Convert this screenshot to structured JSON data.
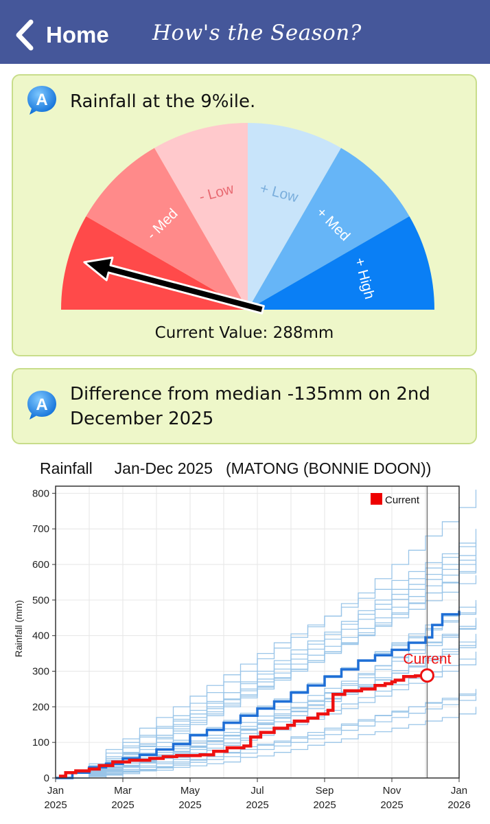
{
  "navbar": {
    "back_label": "Home",
    "title": "How's the Season?"
  },
  "status_card": {
    "badge_letter": "A",
    "heading": "Rainfall at the 9%ile.",
    "gauge_segments": [
      {
        "label": "",
        "color": "#ff4a4a"
      },
      {
        "label": "- Med",
        "color": "#ff8a8a"
      },
      {
        "label": "- Low",
        "color": "#ffc9cc"
      },
      {
        "label": "+ Low",
        "color": "#c8e4fa"
      },
      {
        "label": "+ Med",
        "color": "#66b5f7"
      },
      {
        "label": "+ High",
        "color": "#0a7ff5"
      }
    ],
    "gauge_percentile": 9,
    "current_value": "Current Value: 288mm"
  },
  "median_card": {
    "badge_letter": "A",
    "text_line1": "Difference from median -135mm on 2nd",
    "text_line2": "December 2025"
  },
  "chart_title": "Rainfall     Jan-Dec 2025   (MATONG (BONNIE DOON))",
  "chart_data": {
    "type": "line",
    "ylabel": "Rainfall (mm)",
    "ylim": [
      0,
      820
    ],
    "yticks": [
      0,
      100,
      200,
      300,
      400,
      500,
      600,
      700,
      800
    ],
    "xticks": [
      {
        "month": 0,
        "line1": "Jan",
        "line2": "2025"
      },
      {
        "month": 2,
        "line1": "Mar",
        "line2": "2025"
      },
      {
        "month": 4,
        "line1": "May",
        "line2": "2025"
      },
      {
        "month": 6,
        "line1": "Jul",
        "line2": "2025"
      },
      {
        "month": 8,
        "line1": "Sep",
        "line2": "2025"
      },
      {
        "month": 10,
        "line1": "Nov",
        "line2": "2025"
      },
      {
        "month": 12,
        "line1": "Jan",
        "line2": "2026"
      }
    ],
    "legend": {
      "label": "Current",
      "color": "#ee0000",
      "position": "top-right"
    },
    "current_annotation": "Current",
    "current_marker": {
      "month": 11.05,
      "value": 288
    },
    "current_color": "#ee1111",
    "median_color": "#1f6fd6",
    "history_color": "#8fbfe6",
    "series": [
      {
        "name": "Current",
        "points": [
          [
            0.1,
            5
          ],
          [
            0.3,
            15
          ],
          [
            0.6,
            20
          ],
          [
            1.0,
            25
          ],
          [
            1.3,
            35
          ],
          [
            1.7,
            45
          ],
          [
            2.2,
            50
          ],
          [
            2.8,
            55
          ],
          [
            3.2,
            60
          ],
          [
            3.6,
            63
          ],
          [
            4.3,
            65
          ],
          [
            4.6,
            65
          ],
          [
            4.7,
            75
          ],
          [
            5.1,
            85
          ],
          [
            5.6,
            90
          ],
          [
            5.8,
            115
          ],
          [
            6.1,
            128
          ],
          [
            6.5,
            140
          ],
          [
            6.9,
            148
          ],
          [
            7.1,
            160
          ],
          [
            7.5,
            168
          ],
          [
            7.8,
            180
          ],
          [
            8.1,
            190
          ],
          [
            8.25,
            235
          ],
          [
            8.6,
            245
          ],
          [
            9.1,
            250
          ],
          [
            9.5,
            260
          ],
          [
            9.8,
            265
          ],
          [
            10.0,
            270
          ],
          [
            10.1,
            275
          ],
          [
            10.35,
            285
          ],
          [
            10.7,
            287
          ],
          [
            11.05,
            288
          ]
        ]
      },
      {
        "points": [
          [
            0,
            0
          ],
          [
            0.5,
            15
          ],
          [
            1,
            30
          ],
          [
            1.5,
            40
          ],
          [
            2,
            55
          ],
          [
            2.5,
            65
          ],
          [
            3,
            80
          ],
          [
            3.5,
            95
          ],
          [
            4,
            120
          ],
          [
            4.5,
            135
          ],
          [
            5,
            155
          ],
          [
            5.5,
            175
          ],
          [
            6,
            195
          ],
          [
            6.5,
            215
          ],
          [
            7,
            240
          ],
          [
            7.5,
            260
          ],
          [
            8,
            285
          ],
          [
            8.5,
            305
          ],
          [
            9,
            330
          ],
          [
            9.5,
            345
          ],
          [
            10,
            360
          ],
          [
            10.5,
            380
          ],
          [
            11,
            395
          ],
          [
            11.2,
            430
          ],
          [
            11.5,
            460
          ],
          [
            12,
            470
          ]
        ]
      }
    ],
    "history": [
      [
        0,
        0,
        12,
        0,
        18,
        20,
        22,
        30,
        34,
        40,
        45,
        58,
        62,
        72,
        80,
        92,
        100,
        110,
        122,
        130,
        140,
        150,
        160,
        170,
        180,
        200
      ],
      [
        0,
        0,
        4,
        8,
        12,
        20,
        30,
        45,
        52,
        60,
        72,
        88,
        95,
        100,
        112,
        120,
        135,
        148,
        160,
        175,
        185,
        200,
        210,
        220,
        232,
        240
      ],
      [
        0,
        0,
        25,
        45,
        70,
        95,
        120,
        150,
        180,
        210,
        240,
        270,
        300,
        330,
        360,
        385,
        410,
        440,
        470,
        500,
        530,
        560,
        590,
        620,
        650,
        670
      ],
      [
        0,
        0,
        30,
        55,
        85,
        115,
        145,
        175,
        210,
        240,
        270,
        300,
        335,
        365,
        395,
        425,
        455,
        490,
        520,
        560,
        600,
        640,
        680,
        720,
        760,
        810
      ],
      [
        0,
        0,
        10,
        18,
        30,
        42,
        55,
        68,
        80,
        95,
        110,
        125,
        140,
        158,
        175,
        195,
        215,
        235,
        255,
        275,
        295,
        315,
        335,
        355,
        372,
        390
      ],
      [
        0,
        0,
        15,
        25,
        35,
        48,
        62,
        75,
        90,
        105,
        120,
        138,
        155,
        175,
        195,
        215,
        240,
        265,
        290,
        315,
        340,
        360,
        380,
        400,
        420,
        440
      ],
      [
        0,
        0,
        20,
        40,
        60,
        80,
        100,
        125,
        150,
        175,
        200,
        225,
        250,
        275,
        300,
        325,
        350,
        375,
        400,
        430,
        460,
        490,
        520,
        550,
        580,
        610
      ],
      [
        0,
        0,
        5,
        10,
        20,
        30,
        40,
        52,
        64,
        78,
        92,
        106,
        120,
        135,
        150,
        165,
        180,
        195,
        212,
        230,
        248,
        266,
        284,
        300,
        318,
        335
      ],
      [
        0,
        0,
        35,
        70,
        100,
        120,
        140,
        160,
        180,
        200,
        220,
        245,
        270,
        295,
        320,
        345,
        370,
        395,
        420,
        450,
        480,
        510,
        540,
        570,
        600,
        620
      ],
      [
        0,
        0,
        12,
        24,
        36,
        50,
        65,
        82,
        98,
        112,
        128,
        145,
        162,
        180,
        198,
        218,
        238,
        260,
        282,
        305,
        328,
        350,
        372,
        395,
        418,
        450
      ],
      [
        0,
        0,
        18,
        32,
        48,
        65,
        82,
        100,
        118,
        136,
        155,
        175,
        195,
        215,
        238,
        260,
        282,
        305,
        330,
        355,
        380,
        405,
        430,
        455,
        480,
        500
      ],
      [
        0,
        0,
        8,
        15,
        24,
        34,
        45,
        58,
        70,
        84,
        98,
        112,
        126,
        140,
        156,
        172,
        190,
        208,
        226,
        244,
        262,
        280,
        298,
        316,
        334,
        355
      ],
      [
        0,
        0,
        40,
        80,
        110,
        140,
        170,
        200,
        230,
        260,
        290,
        320,
        350,
        380,
        405,
        430,
        455,
        480,
        505,
        530,
        555,
        580,
        605,
        630,
        660,
        700
      ],
      [
        0,
        0,
        22,
        44,
        66,
        88,
        110,
        132,
        156,
        180,
        205,
        230,
        255,
        280,
        305,
        330,
        355,
        380,
        408,
        436,
        464,
        492,
        520,
        548,
        576,
        600
      ],
      [
        0,
        0,
        6,
        12,
        18,
        24,
        32,
        40,
        50,
        60,
        70,
        80,
        92,
        104,
        116,
        128,
        140,
        152,
        164,
        176,
        188,
        200,
        212,
        224,
        236,
        250
      ],
      [
        0,
        0,
        28,
        50,
        72,
        96,
        120,
        145,
        170,
        195,
        222,
        250,
        278,
        306,
        334,
        362,
        390,
        418,
        446,
        474,
        502,
        530,
        558,
        586,
        612,
        640
      ],
      [
        0,
        0,
        14,
        28,
        42,
        56,
        72,
        88,
        104,
        120,
        138,
        156,
        174,
        192,
        212,
        232,
        252,
        272,
        294,
        316,
        338,
        360,
        382,
        404,
        426,
        445
      ],
      [
        0,
        0,
        10,
        20,
        32,
        44,
        58,
        72,
        86,
        102,
        118,
        134,
        150,
        168,
        186,
        204,
        222,
        240,
        258,
        276,
        294,
        312,
        330,
        348,
        366,
        385
      ],
      [
        0,
        0,
        30,
        60,
        90,
        115,
        140,
        165,
        190,
        215,
        240,
        265,
        292,
        320,
        348,
        376,
        404,
        432,
        460,
        488,
        516,
        544,
        572,
        600,
        625,
        660
      ],
      [
        0,
        0,
        16,
        30,
        46,
        62,
        80,
        98,
        118,
        138,
        158,
        178,
        198,
        218,
        240,
        262,
        284,
        306,
        328,
        350,
        372,
        394,
        416,
        438,
        460,
        480
      ],
      [
        0,
        0,
        4,
        10,
        16,
        22,
        28,
        36,
        44,
        52,
        60,
        70,
        80,
        90,
        100,
        110,
        122,
        134,
        146,
        158,
        170,
        182,
        194,
        206,
        218,
        230
      ],
      [
        0,
        0,
        24,
        46,
        68,
        90,
        114,
        138,
        162,
        186,
        210,
        234,
        258,
        282,
        306,
        330,
        354,
        378,
        402,
        426,
        450,
        474,
        498,
        522,
        546,
        570
      ],
      [
        0,
        0,
        20,
        36,
        52,
        70,
        88,
        106,
        124,
        142,
        162,
        182,
        202,
        222,
        244,
        266,
        288,
        310,
        332,
        354,
        376,
        398,
        420,
        442,
        464,
        490
      ],
      [
        0,
        0,
        12,
        22,
        34,
        46,
        60,
        74,
        88,
        104,
        120,
        136,
        152,
        170,
        188,
        206,
        224,
        242,
        262,
        282,
        302,
        322,
        342,
        362,
        382,
        405
      ]
    ]
  }
}
